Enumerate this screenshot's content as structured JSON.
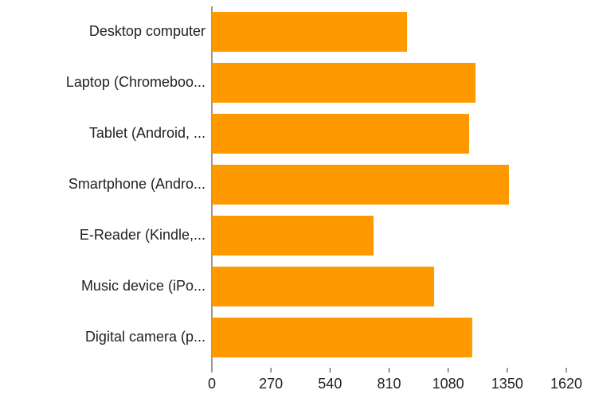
{
  "chart_data": {
    "type": "bar",
    "orientation": "horizontal",
    "categories": [
      "Desktop computer",
      "Laptop (Chromeboo...",
      "Tablet (Android, ...",
      "Smartphone (Andro...",
      "E-Reader (Kindle,...",
      "Music device (iPo...",
      "Digital camera (p..."
    ],
    "values": [
      892,
      1205,
      1176,
      1358,
      739,
      1016,
      1190
    ],
    "color": "#ff9900",
    "xlim": [
      0,
      1620
    ],
    "xticks": [
      0,
      270,
      540,
      810,
      1080,
      1350,
      1620
    ],
    "grid": false
  }
}
